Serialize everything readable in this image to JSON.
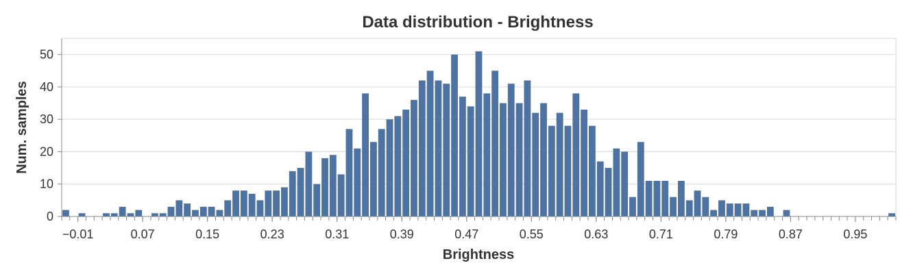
{
  "chart_data": {
    "type": "bar",
    "title": "Data distribution - Brightness",
    "xlabel": "Brightness",
    "ylabel": "Num. samples",
    "bar_color": "#4e73a3",
    "ylim": [
      0,
      55
    ],
    "y_ticks": [
      0,
      10,
      20,
      30,
      40,
      50
    ],
    "xlim": [
      -0.03,
      1.0
    ],
    "x_ticks": [
      -0.01,
      0.07,
      0.15,
      0.23,
      0.31,
      0.39,
      0.47,
      0.55,
      0.63,
      0.71,
      0.79,
      0.87,
      0.95
    ],
    "x_tick_labels": [
      "−0.01",
      "0.07",
      "0.15",
      "0.23",
      "0.31",
      "0.39",
      "0.47",
      "0.55",
      "0.63",
      "0.71",
      "0.79",
      "0.87",
      "0.95"
    ],
    "bin_start": -0.03,
    "bin_width": 0.01,
    "values": [
      2,
      0,
      1,
      0,
      0,
      1,
      1,
      3,
      1,
      2,
      0,
      1,
      1,
      3,
      5,
      4,
      2,
      3,
      3,
      2,
      5,
      8,
      8,
      7,
      5,
      8,
      8,
      9,
      14,
      15,
      20,
      10,
      18,
      19,
      13,
      27,
      21,
      38,
      23,
      27,
      30,
      31,
      33,
      36,
      42,
      45,
      42,
      41,
      50,
      37,
      34,
      51,
      38,
      45,
      35,
      41,
      35,
      42,
      32,
      35,
      28,
      32,
      28,
      38,
      33,
      28,
      17,
      15,
      21,
      20,
      6,
      23,
      11,
      11,
      11,
      6,
      11,
      5,
      8,
      6,
      2,
      5,
      4,
      4,
      4,
      2,
      2,
      3,
      0,
      2,
      0,
      0,
      0,
      0,
      0,
      0,
      0,
      0,
      0,
      0,
      0,
      0,
      1
    ]
  }
}
